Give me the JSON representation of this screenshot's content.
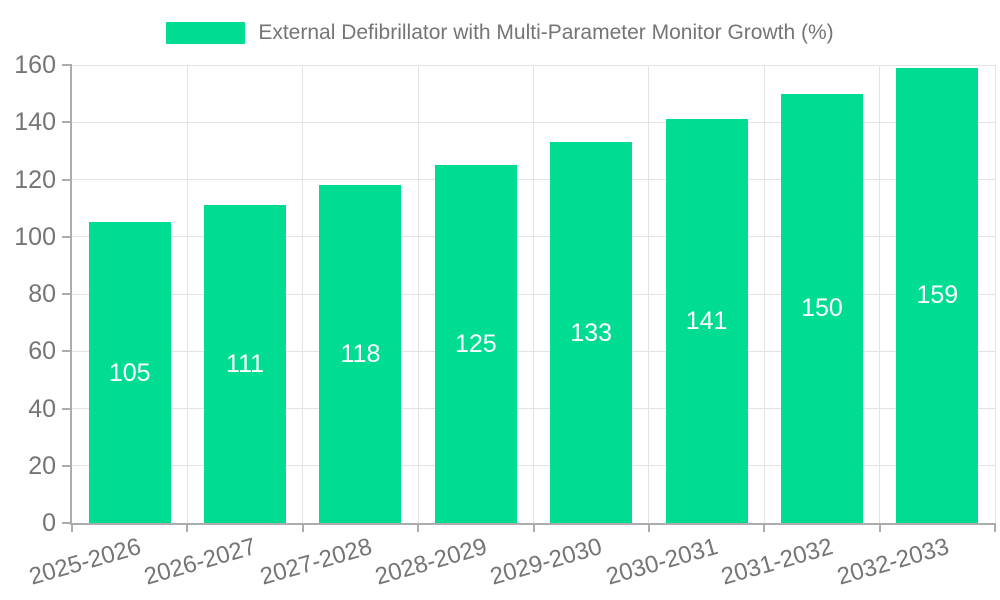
{
  "legend": {
    "label": "External Defibrillator with Multi-Parameter Monitor Growth (%)"
  },
  "chart_data": {
    "type": "bar",
    "title": "External Defibrillator with Multi-Parameter Monitor Growth (%)",
    "categories": [
      "2025-2026",
      "2026-2027",
      "2027-2028",
      "2028-2029",
      "2029-2030",
      "2030-2031",
      "2031-2032",
      "2032-2033"
    ],
    "values": [
      105,
      111,
      118,
      125,
      133,
      141,
      150,
      159
    ],
    "xlabel": "",
    "ylabel": "",
    "ylim": [
      0,
      160
    ],
    "yticks": [
      0,
      20,
      40,
      60,
      80,
      100,
      120,
      140,
      160
    ],
    "grid": true,
    "legend_position": "top-center",
    "colors": {
      "bar": "#00DD93",
      "value_label": "#FFFFFF",
      "tick_label": "#757575",
      "grid": "#E3E3E3",
      "axis": "#ACACAC",
      "background": "#FFFFFF"
    }
  }
}
